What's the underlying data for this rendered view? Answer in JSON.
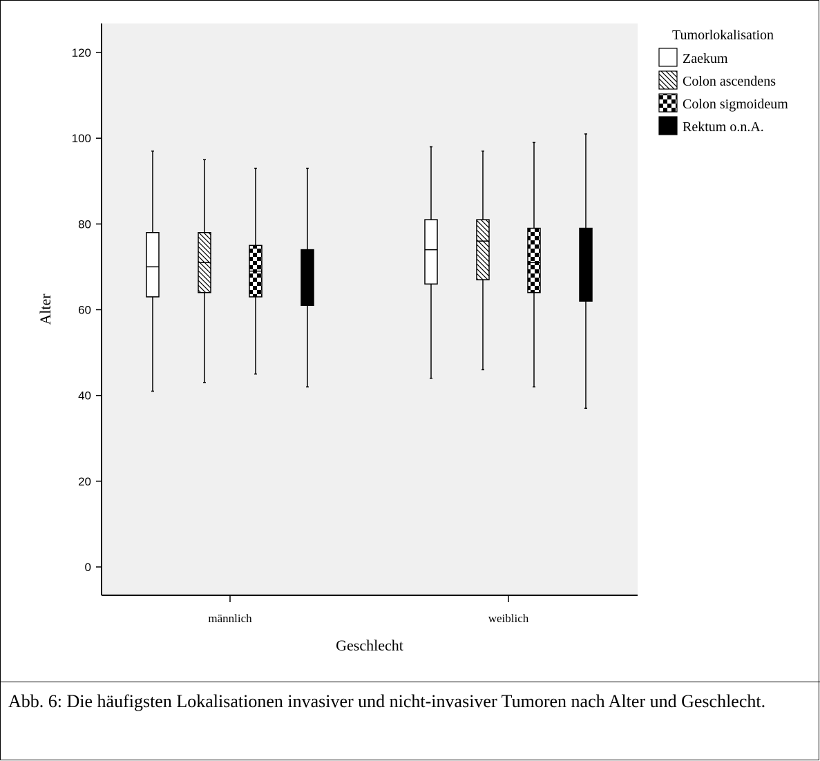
{
  "caption": "Abb. 6: Die häufigsten Lokalisationen invasiver und nicht-invasiver Tumoren  nach Alter und Geschlecht.",
  "chart_data": {
    "type": "boxplot",
    "xlabel": "Geschlecht",
    "ylabel": "Alter",
    "ylim": [
      0,
      120
    ],
    "yticks": [
      0,
      20,
      40,
      60,
      80,
      100,
      120
    ],
    "categories": [
      "männlich",
      "weiblich"
    ],
    "legend": {
      "title": "Tumorlokalisation",
      "position": "top-right"
    },
    "background": "#f0f0f0",
    "series": [
      {
        "name": "Zaekum",
        "pattern": "empty",
        "values": [
          {
            "min": 41,
            "q1": 63,
            "median": 70,
            "q3": 78,
            "max": 97
          },
          {
            "min": 44,
            "q1": 66,
            "median": 74,
            "q3": 81,
            "max": 98
          }
        ]
      },
      {
        "name": "Colon ascendens",
        "pattern": "diagonal-hatch",
        "values": [
          {
            "min": 43,
            "q1": 64,
            "median": 71,
            "q3": 78,
            "max": 95
          },
          {
            "min": 46,
            "q1": 67,
            "median": 76,
            "q3": 81,
            "max": 97
          }
        ]
      },
      {
        "name": "Colon sigmoideum",
        "pattern": "checker",
        "values": [
          {
            "min": 45,
            "q1": 63,
            "median": 69,
            "q3": 75,
            "max": 93
          },
          {
            "min": 42,
            "q1": 64,
            "median": 71,
            "q3": 79,
            "max": 99
          }
        ]
      },
      {
        "name": "Rektum o.n.A.",
        "pattern": "solid",
        "values": [
          {
            "min": 42,
            "q1": 61,
            "median": 67,
            "q3": 74,
            "max": 93
          },
          {
            "min": 37,
            "q1": 62,
            "median": 70,
            "q3": 79,
            "max": 101
          }
        ]
      }
    ]
  }
}
